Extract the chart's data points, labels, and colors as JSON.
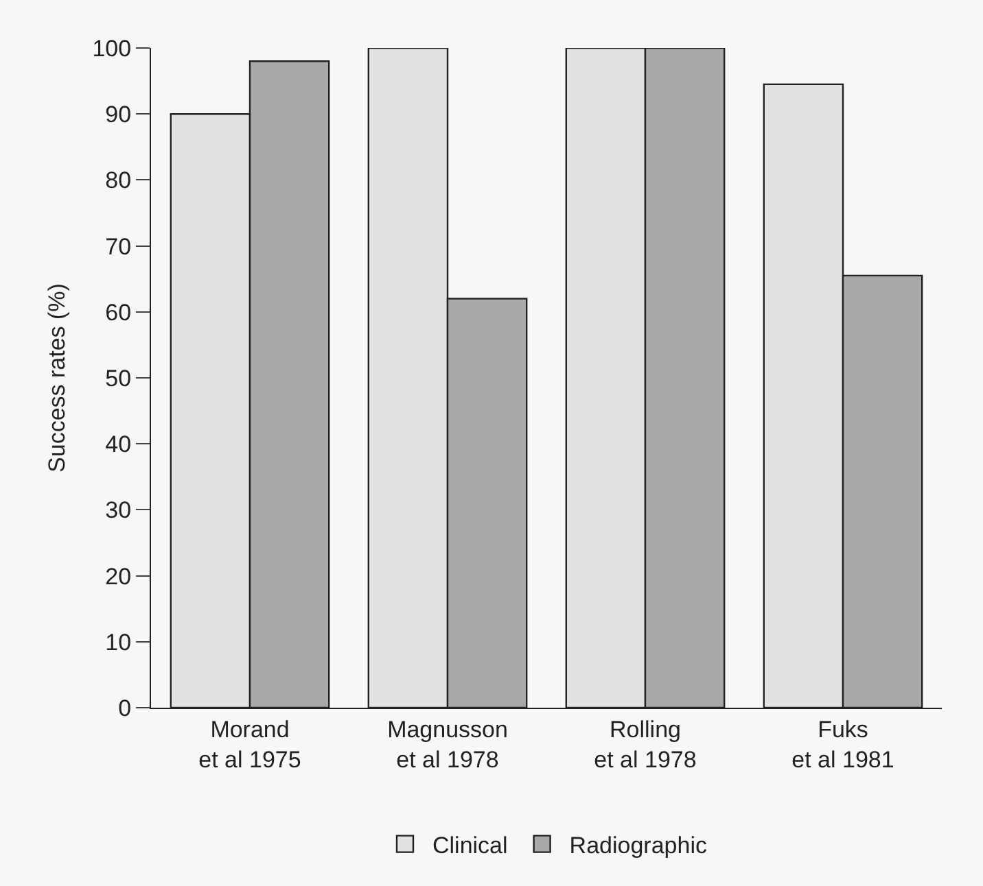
{
  "chart_data": {
    "type": "bar",
    "ylabel": "Success rates (%)",
    "categories": [
      "Morand\net al 1975",
      "Magnusson\net al 1978",
      "Rolling\net al 1978",
      "Fuks\net al 1981"
    ],
    "series": [
      {
        "name": "Clinical",
        "color": "#e2e2e2",
        "values": [
          90,
          100,
          100,
          94.5
        ]
      },
      {
        "name": "Radiographic",
        "color": "#a9a9a9",
        "values": [
          98,
          62,
          100,
          65.5
        ]
      }
    ],
    "ylim": [
      0,
      100
    ],
    "yticks": [
      0,
      10,
      20,
      30,
      40,
      50,
      60,
      70,
      80,
      90,
      100
    ],
    "grid": false,
    "legend": "bottom"
  }
}
